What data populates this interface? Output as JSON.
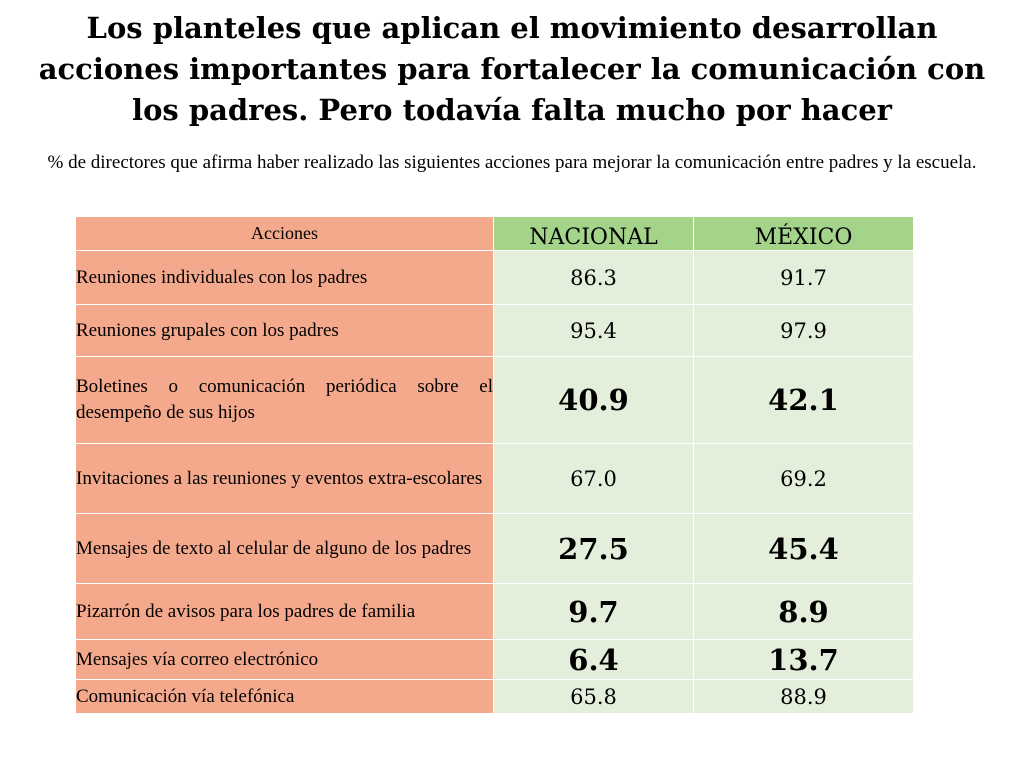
{
  "title": "Los planteles que aplican el movimiento desarrollan acciones importantes para fortalecer la comunicación con los padres. Pero todavía falta mucho por hacer",
  "subtitle": "% de directores que afirma haber realizado las siguientes acciones para mejorar la comunicación entre padres y la escuela.",
  "table": {
    "headers": {
      "action": "Acciones",
      "nacional": "NACIONAL",
      "mexico": "MÉXICO"
    },
    "rows": [
      {
        "action": "Reuniones individuales con los padres",
        "nacional": "86.3",
        "mexico": "91.7"
      },
      {
        "action": "Reuniones grupales con los padres",
        "nacional": "95.4",
        "mexico": "97.9"
      },
      {
        "action": "Boletines o comunicación periódica sobre el desempeño de sus hijos",
        "nacional": "40.9",
        "mexico": "42.1"
      },
      {
        "action": "Invitaciones a las reuniones y eventos extra-escolares",
        "nacional": "67.0",
        "mexico": "69.2"
      },
      {
        "action": "Mensajes de texto al celular de alguno de los padres",
        "nacional": "27.5",
        "mexico": "45.4"
      },
      {
        "action": "Pizarrón de avisos para los padres de familia",
        "nacional": "9.7",
        "mexico": "8.9"
      },
      {
        "action": "Mensajes vía correo electrónico",
        "nacional": "6.4",
        "mexico": "13.7"
      },
      {
        "action": "Comunicación vía telefónica",
        "nacional": "65.8",
        "mexico": "88.9"
      }
    ]
  },
  "colors": {
    "action_cell": "#f4a98d",
    "header_green": "#a4d48a",
    "value_cell": "#e3eedb"
  }
}
